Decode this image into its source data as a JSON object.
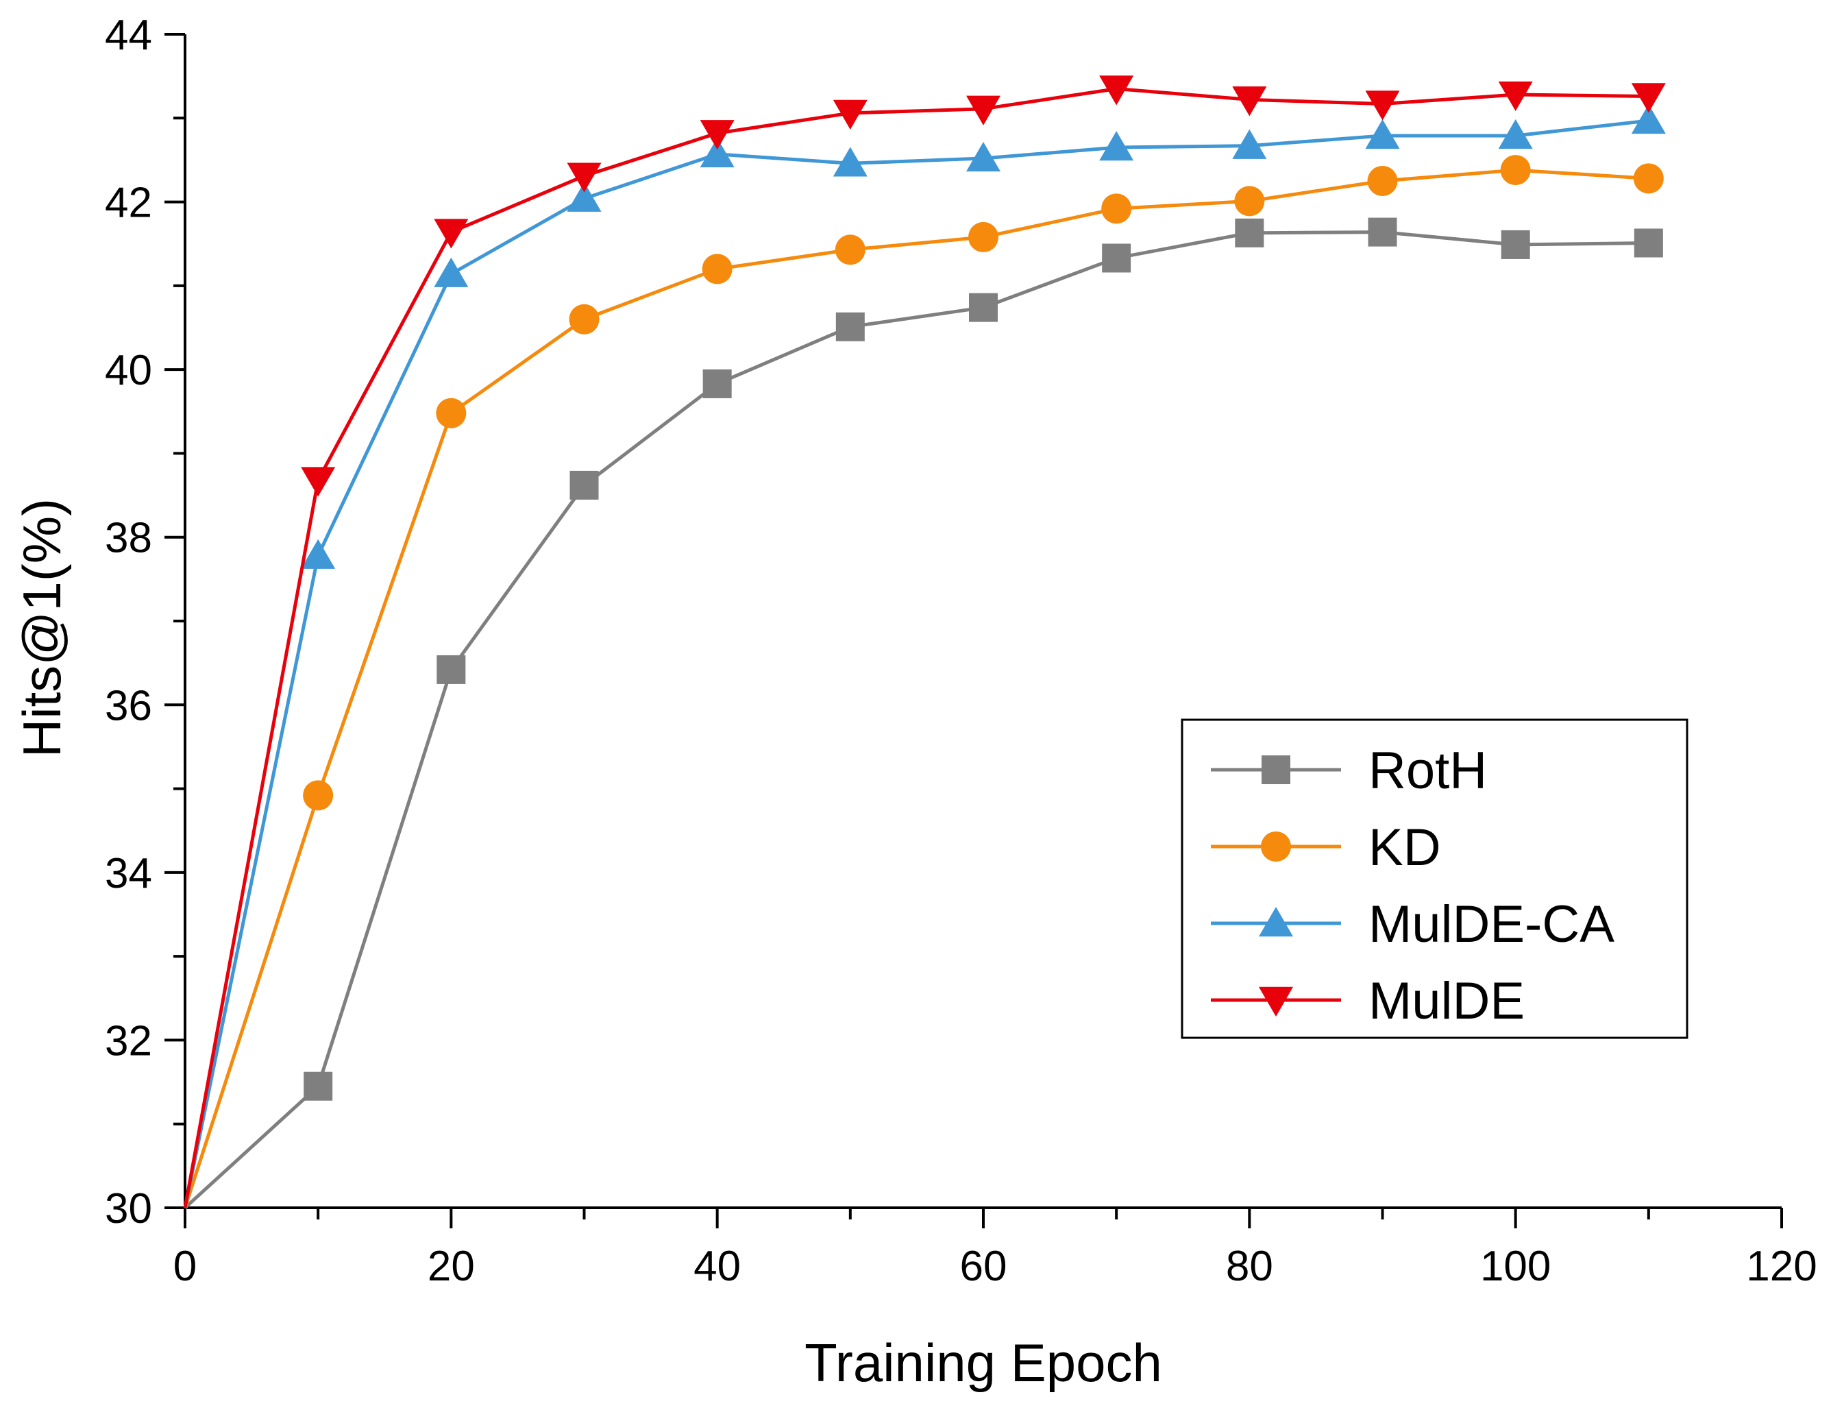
{
  "chart_data": {
    "type": "line",
    "title": "",
    "xlabel": "Training Epoch",
    "ylabel": "Hits@1(%)",
    "xlim": [
      0,
      120
    ],
    "ylim": [
      30,
      44
    ],
    "xticks": [
      0,
      20,
      40,
      60,
      80,
      100,
      120
    ],
    "yticks": [
      30,
      32,
      34,
      36,
      38,
      40,
      42,
      44
    ],
    "grid": false,
    "legend_position": "lower-right",
    "x": [
      0,
      10,
      20,
      30,
      40,
      50,
      60,
      70,
      80,
      90,
      100,
      110
    ],
    "series": [
      {
        "name": "RotH",
        "color": "#7f7f7f",
        "marker": "square",
        "values": [
          30,
          31.45,
          36.42,
          38.62,
          39.83,
          40.51,
          40.74,
          41.33,
          41.63,
          41.64,
          41.49,
          41.51
        ]
      },
      {
        "name": "KD",
        "color": "#f58a0c",
        "marker": "circle",
        "values": [
          30,
          34.92,
          39.48,
          40.6,
          41.2,
          41.43,
          41.58,
          41.92,
          42.01,
          42.25,
          42.38,
          42.28
        ]
      },
      {
        "name": "MulDE-CA",
        "color": "#3f97d6",
        "marker": "triangle-up",
        "values": [
          30,
          37.78,
          41.14,
          42.04,
          42.57,
          42.46,
          42.52,
          42.65,
          42.67,
          42.79,
          42.79,
          42.97
        ]
      },
      {
        "name": "MulDE",
        "color": "#e8000b",
        "marker": "triangle-down",
        "values": [
          30,
          38.68,
          41.64,
          42.31,
          42.82,
          43.06,
          43.11,
          43.35,
          43.22,
          43.17,
          43.28,
          43.26
        ]
      }
    ]
  }
}
